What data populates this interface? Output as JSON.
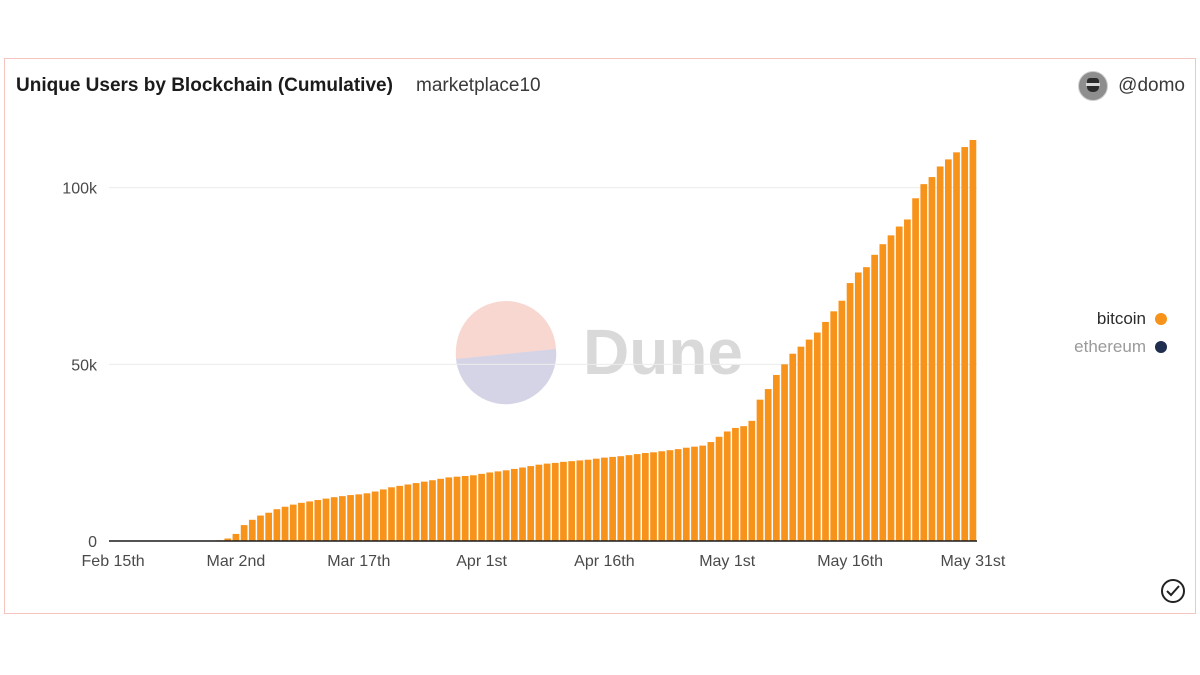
{
  "header": {
    "title": "Unique Users by Blockchain (Cumulative)",
    "subtitle": "marketplace10",
    "author": "@domo"
  },
  "watermark": {
    "text": "Dune",
    "colors": {
      "top": "#f8d7d1",
      "bottom": "#d5d4e6",
      "text": "#d9d9d9"
    }
  },
  "icons": {
    "avatar": "avatar-icon",
    "check": "check-circle-icon"
  },
  "colors": {
    "bitcoin": "#f7931a",
    "ethereum": "#1f2d4e",
    "legend_muted": "#9a9a9a"
  },
  "chart_data": {
    "type": "bar",
    "stacked": true,
    "x_ticks": [
      "Feb 15th",
      "Mar 2nd",
      "Mar 17th",
      "Apr 1st",
      "Apr 16th",
      "May 1st",
      "May 16th",
      "May 31st"
    ],
    "ylim": [
      0,
      120000
    ],
    "y_ticks": [
      {
        "value": 0,
        "label": "0"
      },
      {
        "value": 50000,
        "label": "50k"
      },
      {
        "value": 100000,
        "label": "100k"
      }
    ],
    "grid": true,
    "legend_position": "right",
    "series": [
      {
        "name": "bitcoin",
        "color": "#f7931a",
        "values": [
          0,
          0,
          0,
          0,
          0,
          0,
          0,
          0,
          0,
          0,
          0,
          0,
          0,
          200,
          700,
          2000,
          4500,
          6000,
          7200,
          8000,
          9000,
          9700,
          10300,
          10800,
          11200,
          11600,
          12000,
          12400,
          12700,
          13000,
          13200,
          13500,
          14000,
          14600,
          15200,
          15600,
          16000,
          16400,
          16800,
          17200,
          17600,
          18000,
          18200,
          18400,
          18600,
          19000,
          19400,
          19700,
          20000,
          20400,
          20800,
          21200,
          21600,
          21900,
          22100,
          22400,
          22600,
          22800,
          23000,
          23300,
          23600,
          23800,
          24000,
          24300,
          24600,
          24900,
          25100,
          25400,
          25700,
          26000,
          26400,
          26700,
          27000,
          28000,
          29500,
          31000,
          32000,
          32500,
          34000,
          40000,
          43000,
          47000,
          50000,
          53000,
          55000,
          57000,
          59000,
          62000,
          65000,
          68000,
          73000,
          76000,
          77500,
          81000,
          84000,
          86500,
          89000,
          91000,
          97000,
          101000,
          103000,
          106000,
          108000,
          110000,
          111500,
          113500
        ]
      },
      {
        "name": "ethereum",
        "color": "#1f2d4e",
        "values": []
      }
    ]
  }
}
